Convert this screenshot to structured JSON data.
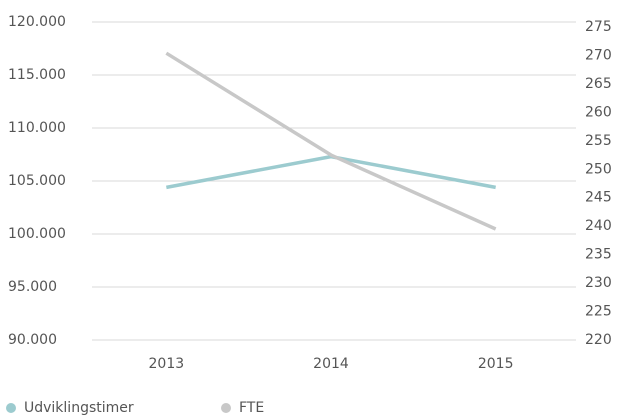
{
  "chart_data": {
    "type": "line",
    "categories": [
      "2013",
      "2014",
      "2015"
    ],
    "series": [
      {
        "name": "Udviklingstimer",
        "color": "#9ccbcf",
        "values": [
          104400,
          107300,
          104400
        ]
      },
      {
        "name": "FTE",
        "color": "#c8c8c8",
        "axis": "y2",
        "values": [
          270.4,
          252.5,
          239.5
        ]
      }
    ],
    "ylim": [
      90000,
      120000
    ],
    "yticks": [
      {
        "value": 90000,
        "label": "90.000"
      },
      {
        "value": 95000,
        "label": "95.000"
      },
      {
        "value": 100000,
        "label": "100.000"
      },
      {
        "value": 105000,
        "label": "105.000"
      },
      {
        "value": 110000,
        "label": "110.000"
      },
      {
        "value": 115000,
        "label": "115.000"
      },
      {
        "value": 120000,
        "label": "120.000"
      }
    ],
    "y2lim": [
      220,
      275
    ],
    "y2ticks": [
      220,
      225,
      230,
      235,
      240,
      245,
      250,
      255,
      260,
      265,
      270,
      275
    ],
    "grid": true
  }
}
